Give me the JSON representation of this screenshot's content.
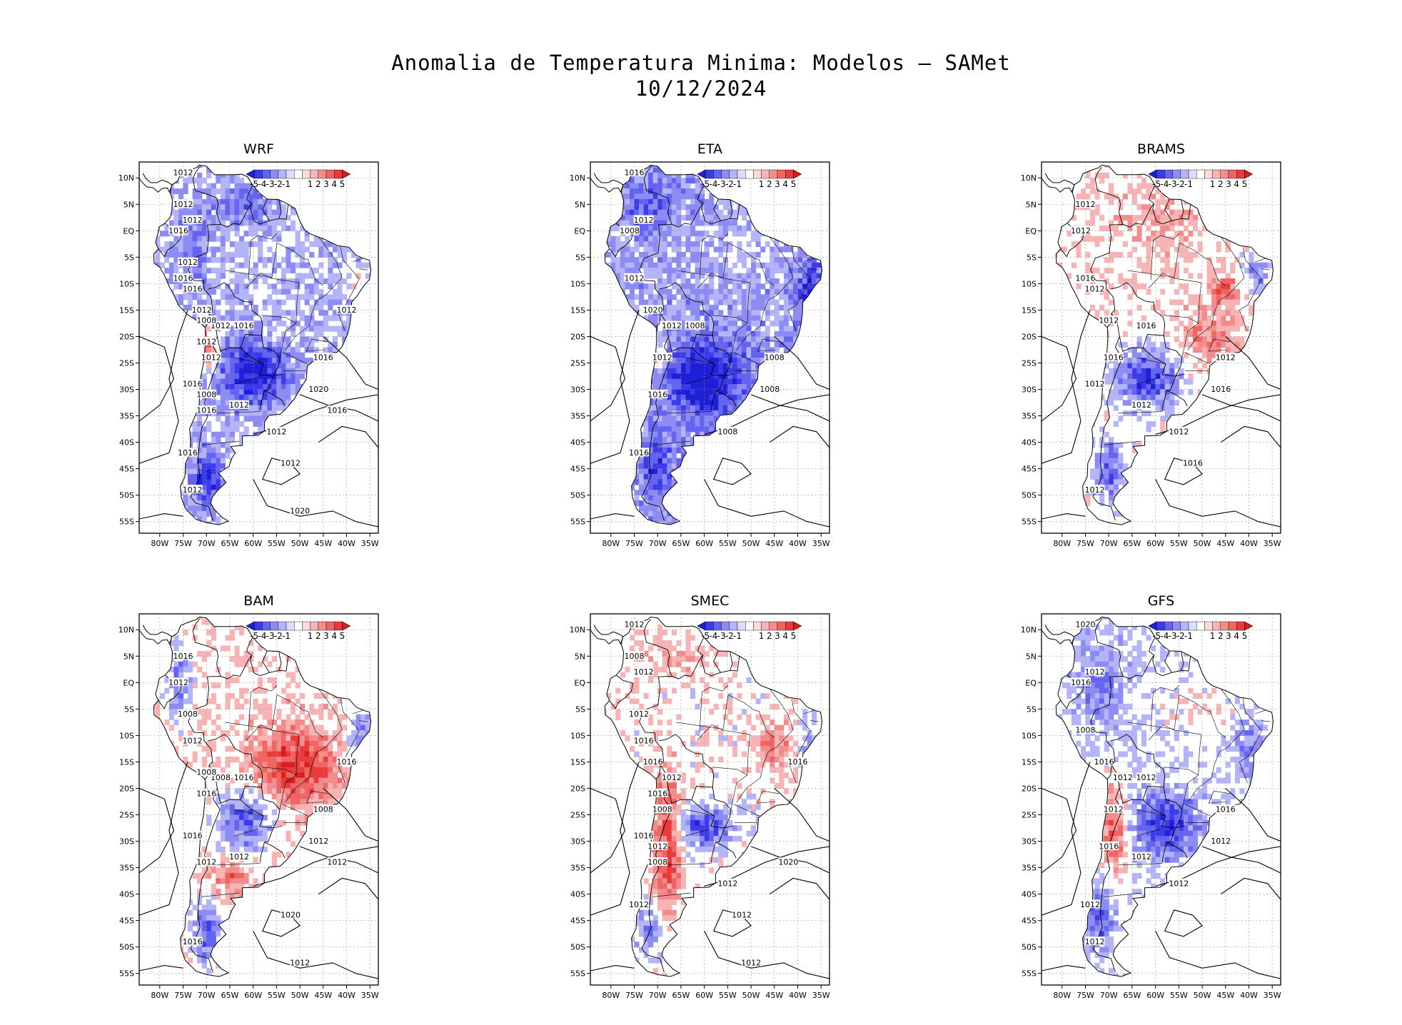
{
  "figure": {
    "title_line1": "Anomalia de Temperatura Minima: Modelos — SAMet",
    "title_line2": "10/12/2024"
  },
  "axes": {
    "lat_ticks": [
      "10N",
      "5N",
      "EQ",
      "5S",
      "10S",
      "15S",
      "20S",
      "25S",
      "30S",
      "35S",
      "40S",
      "45S",
      "50S",
      "55S"
    ],
    "lon_ticks": [
      "80W",
      "75W",
      "70W",
      "65W",
      "60W",
      "55W",
      "50W",
      "45W",
      "40W",
      "35W"
    ]
  },
  "colorbar": {
    "labels": [
      "-5",
      "-4",
      "-3",
      "-2",
      "-1",
      "1",
      "2",
      "3",
      "4",
      "5"
    ],
    "colors": [
      "#1f1fd6",
      "#3b3bea",
      "#6464f0",
      "#8c8cf4",
      "#b4b4f8",
      "#dcdcfb",
      "#ffffff",
      "#fbdcdc",
      "#f8b4b4",
      "#f48c8c",
      "#f06464",
      "#ea3b3b",
      "#d61f1f"
    ]
  },
  "panels": [
    {
      "name": "WRF",
      "isobars": [
        "1012",
        "1012",
        "1008",
        "1016",
        "1012",
        "1012",
        "1016",
        "1020",
        "1012",
        "1012",
        "1016",
        "1012",
        "1016",
        "1016",
        "1012",
        "1012",
        "1008",
        "1012",
        "1012",
        "1016",
        "1016",
        "1020",
        "1016",
        "1016",
        "1012",
        "1012"
      ]
    },
    {
      "name": "ETA",
      "isobars": [
        "1008",
        "1008",
        "1008",
        "1008",
        "1012",
        "1012",
        "1008",
        "1016",
        "1020",
        "1016",
        "1016",
        "1012",
        "1012"
      ]
    },
    {
      "name": "BRAMS",
      "isobars": [
        "1012",
        "1012",
        "1016",
        "1012",
        "1012",
        "1012",
        "1012",
        "1012",
        "1016",
        "1016",
        "1012",
        "1016",
        "1016",
        "1012"
      ]
    },
    {
      "name": "BAM",
      "isobars": [
        "1008",
        "1012",
        "1012",
        "1008",
        "1016",
        "1012",
        "1016",
        "1012",
        "1016",
        "1020",
        "1016",
        "1008",
        "1012",
        "1016",
        "1012",
        "1016",
        "1012",
        "1008"
      ]
    },
    {
      "name": "SMEC",
      "isobars": [
        "1008",
        "1012",
        "1012",
        "1016",
        "1012",
        "1012",
        "1012",
        "1012",
        "1008",
        "1012",
        "1012",
        "1016",
        "1020",
        "1016",
        "1016",
        "1016",
        "1012",
        "1008"
      ]
    },
    {
      "name": "GFS",
      "isobars": [
        "1012",
        "1012",
        "1016",
        "1012",
        "1012",
        "1016",
        "1008",
        "1012",
        "1012",
        "1020",
        "1016",
        "1016",
        "1012",
        "1012",
        "1012"
      ]
    }
  ]
}
